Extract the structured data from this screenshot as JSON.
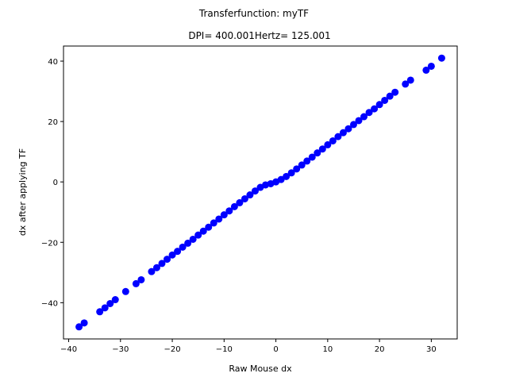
{
  "chart_data": {
    "type": "scatter",
    "suptitle": "Transferfunction: myTF",
    "title": "DPI= 400.001Hertz= 125.001",
    "xlabel": "Raw Mouse dx",
    "ylabel": "dx after applying TF",
    "xlim": [
      -41,
      35
    ],
    "ylim": [
      -52,
      45
    ],
    "xticks": [
      -40,
      -30,
      -20,
      -10,
      0,
      10,
      20,
      30
    ],
    "yticks": [
      -40,
      -20,
      0,
      20,
      40
    ],
    "xtick_labels": [
      "−40",
      "−30",
      "−20",
      "−10",
      "0",
      "10",
      "20",
      "30"
    ],
    "ytick_labels": [
      "−40",
      "−20",
      "0",
      "20",
      "40"
    ],
    "marker_color": "#0000ff",
    "grid": false,
    "legend": "none",
    "series": [
      {
        "x": [
          -38,
          -37,
          -34,
          -33,
          -32,
          -31,
          -29,
          -27,
          -26,
          -24,
          -23,
          -22,
          -21,
          -20,
          -19,
          -18,
          -17,
          -16,
          -15,
          -14,
          -13,
          -12,
          -11,
          -10,
          -9,
          -8,
          -7,
          -6,
          -5,
          -4,
          -3,
          -2,
          -1,
          0,
          1,
          2,
          3,
          4,
          5,
          6,
          7,
          8,
          9,
          10,
          11,
          12,
          13,
          14,
          15,
          16,
          17,
          18,
          19,
          20,
          21,
          22,
          23,
          25,
          26,
          29,
          30,
          32
        ],
        "y": [
          -48,
          -46.7,
          -43,
          -41.7,
          -40.3,
          -39,
          -36.3,
          -33.7,
          -32.4,
          -29.7,
          -28.4,
          -27,
          -25.6,
          -24.2,
          -23,
          -21.6,
          -20.3,
          -19,
          -17.6,
          -16.3,
          -15,
          -13.6,
          -12.3,
          -10.9,
          -9.6,
          -8.2,
          -6.9,
          -5.6,
          -4.3,
          -3,
          -1.8,
          -1,
          -0.6,
          0,
          0.8,
          1.8,
          3,
          4.3,
          5.6,
          6.9,
          8.2,
          9.6,
          10.9,
          12.3,
          13.6,
          15,
          16.3,
          17.6,
          19,
          20.3,
          21.6,
          23,
          24.2,
          25.6,
          27,
          28.4,
          29.7,
          32.4,
          33.7,
          37,
          38.3,
          41
        ]
      }
    ]
  }
}
